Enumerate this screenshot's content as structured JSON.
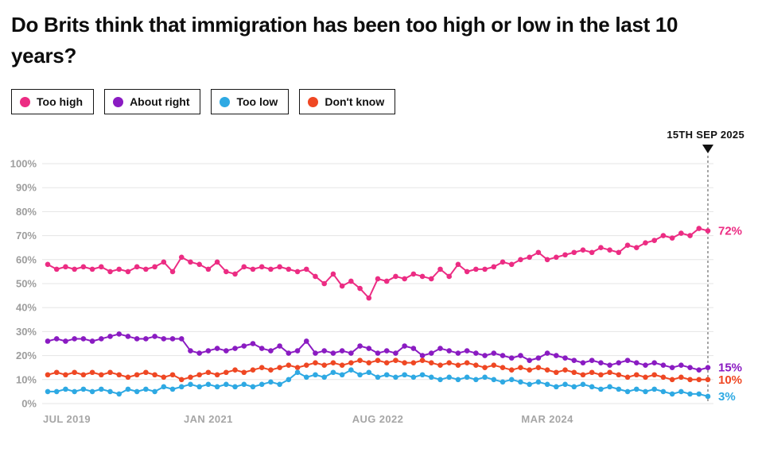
{
  "page": {
    "title": "Do Brits think that immigration has been too high or low in the last 10 years?"
  },
  "legend": [
    {
      "label": "Too high",
      "color": "#EC2C83"
    },
    {
      "label": "About right",
      "color": "#8A1BC2"
    },
    {
      "label": "Too low",
      "color": "#2EA9E3"
    },
    {
      "label": "Don't know",
      "color": "#EF4723"
    }
  ],
  "chart_data": {
    "type": "line",
    "title": "Do Brits think that immigration has been too high or low in the last 10 years?",
    "ylim": [
      0,
      100
    ],
    "grid": true,
    "legend_position": "top",
    "y_ticks": [
      "0%",
      "10%",
      "20%",
      "30%",
      "40%",
      "50%",
      "60%",
      "70%",
      "80%",
      "90%",
      "100%"
    ],
    "x_ticks": [
      {
        "label": "JUL 2019",
        "index": 0
      },
      {
        "label": "JAN 2021",
        "index": 18
      },
      {
        "label": "AUG 2022",
        "index": 37
      },
      {
        "label": "MAR 2024",
        "index": 56
      }
    ],
    "annotation": {
      "label": "15TH SEP 2025",
      "index": 74
    },
    "series": [
      {
        "name": "Too high",
        "color": "#EC2C83",
        "end_label": "72%",
        "values": [
          58,
          56,
          57,
          56,
          57,
          56,
          57,
          55,
          56,
          55,
          57,
          56,
          57,
          59,
          55,
          61,
          59,
          58,
          56,
          59,
          55,
          54,
          57,
          56,
          57,
          56,
          57,
          56,
          55,
          56,
          53,
          50,
          54,
          49,
          51,
          48,
          44,
          52,
          51,
          53,
          52,
          54,
          53,
          52,
          56,
          53,
          58,
          55,
          56,
          56,
          57,
          59,
          58,
          60,
          61,
          63,
          60,
          61,
          62,
          63,
          64,
          63,
          65,
          64,
          63,
          66,
          65,
          67,
          68,
          70,
          69,
          71,
          70,
          73,
          72
        ]
      },
      {
        "name": "About right",
        "color": "#8A1BC2",
        "end_label": "15%",
        "values": [
          26,
          27,
          26,
          27,
          27,
          26,
          27,
          28,
          29,
          28,
          27,
          27,
          28,
          27,
          27,
          27,
          22,
          21,
          22,
          23,
          22,
          23,
          24,
          25,
          23,
          22,
          24,
          21,
          22,
          26,
          21,
          22,
          21,
          22,
          21,
          24,
          23,
          21,
          22,
          21,
          24,
          23,
          20,
          21,
          23,
          22,
          21,
          22,
          21,
          20,
          21,
          20,
          19,
          20,
          18,
          19,
          21,
          20,
          19,
          18,
          17,
          18,
          17,
          16,
          17,
          18,
          17,
          16,
          17,
          16,
          15,
          16,
          15,
          14,
          15
        ]
      },
      {
        "name": "Don't know",
        "color": "#EF4723",
        "end_label": "10%",
        "values": [
          12,
          13,
          12,
          13,
          12,
          13,
          12,
          13,
          12,
          11,
          12,
          13,
          12,
          11,
          12,
          10,
          11,
          12,
          13,
          12,
          13,
          14,
          13,
          14,
          15,
          14,
          15,
          16,
          15,
          16,
          17,
          16,
          17,
          16,
          17,
          18,
          17,
          18,
          17,
          18,
          17,
          17,
          18,
          17,
          16,
          17,
          16,
          17,
          16,
          15,
          16,
          15,
          14,
          15,
          14,
          15,
          14,
          13,
          14,
          13,
          12,
          13,
          12,
          13,
          12,
          11,
          12,
          11,
          12,
          11,
          10,
          11,
          10,
          10,
          10
        ]
      },
      {
        "name": "Too low",
        "color": "#2EA9E3",
        "end_label": "3%",
        "values": [
          5,
          5,
          6,
          5,
          6,
          5,
          6,
          5,
          4,
          6,
          5,
          6,
          5,
          7,
          6,
          7,
          8,
          7,
          8,
          7,
          8,
          7,
          8,
          7,
          8,
          9,
          8,
          10,
          13,
          11,
          12,
          11,
          13,
          12,
          14,
          12,
          13,
          11,
          12,
          11,
          12,
          11,
          12,
          11,
          10,
          11,
          10,
          11,
          10,
          11,
          10,
          9,
          10,
          9,
          8,
          9,
          8,
          7,
          8,
          7,
          8,
          7,
          6,
          7,
          6,
          5,
          6,
          5,
          6,
          5,
          4,
          5,
          4,
          4,
          3
        ]
      }
    ]
  }
}
